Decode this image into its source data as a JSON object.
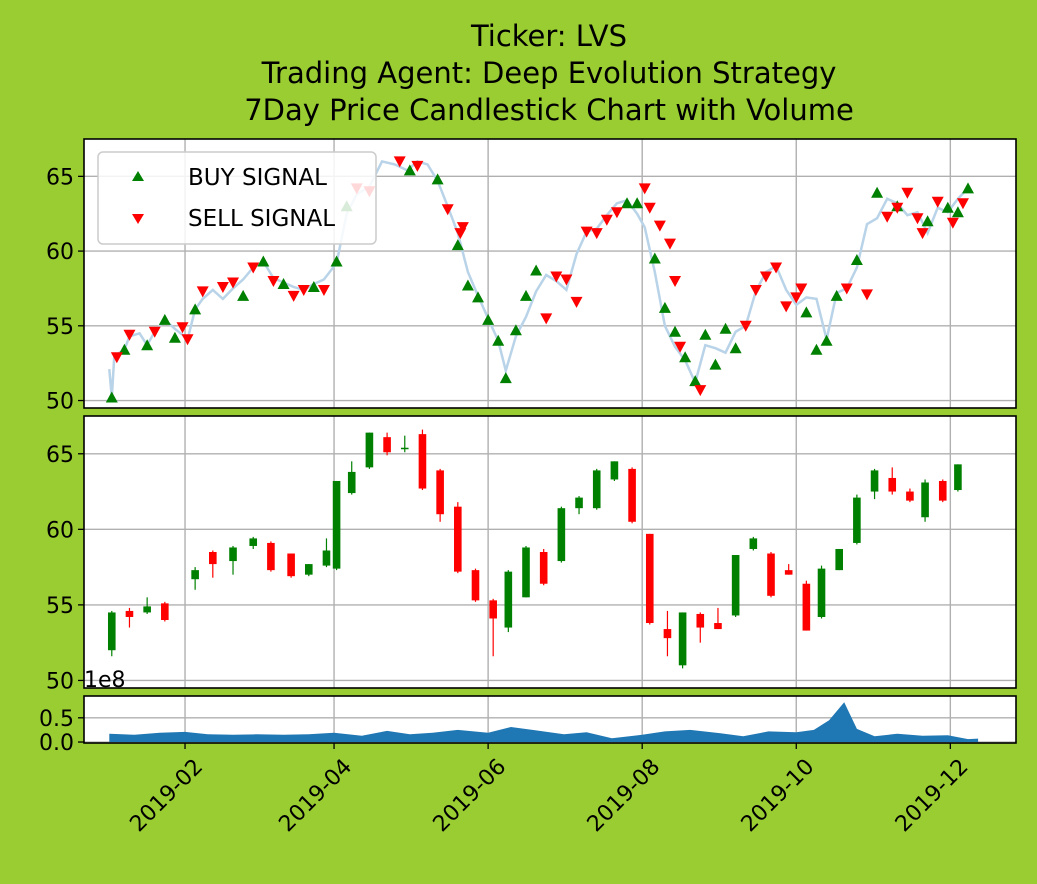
{
  "chart_data": {
    "type": "candlestick",
    "title": "Ticker: LVS",
    "subtitle_1": "Trading Agent: Deep Evolution Strategy",
    "subtitle_2": "7Day Price Candlestick Chart with Volume",
    "x_tick_labels": [
      "2019-02",
      "2019-04",
      "2019-06",
      "2019-08",
      "2019-10",
      "2019-12"
    ],
    "x_range": [
      "2018-12-23",
      "2019-12-27"
    ],
    "price_axis": {
      "ylim": [
        49.5,
        67.5
      ],
      "ticks": [
        50,
        55,
        60,
        65
      ]
    },
    "volume_axis": {
      "ylim": [
        -0.02,
        0.95
      ],
      "ticks": [
        "0.0",
        "0.5"
      ],
      "offset_label": "1e8"
    },
    "grid": true,
    "legend": {
      "placement": "top-left",
      "entries": [
        "BUY SIGNAL",
        "SELL SIGNAL"
      ]
    },
    "colors": {
      "background": "#9acd32",
      "price_line": "#b9d3e8",
      "buy": "#008000",
      "sell": "#ff0000",
      "volume": "#1f77b4",
      "grid": "#b0b0b0"
    },
    "price_series": [
      [
        "2019-01-02",
        52.1
      ],
      [
        "2019-01-03",
        50.2
      ],
      [
        "2019-01-04",
        53.0
      ],
      [
        "2019-01-08",
        53.4
      ],
      [
        "2019-01-10",
        54.3
      ],
      [
        "2019-01-14",
        54.5
      ],
      [
        "2019-01-17",
        53.7
      ],
      [
        "2019-01-20",
        54.6
      ],
      [
        "2019-01-24",
        55.4
      ],
      [
        "2019-01-28",
        54.8
      ],
      [
        "2019-01-31",
        54.4
      ],
      [
        "2019-02-02",
        54.1
      ],
      [
        "2019-02-05",
        56.1
      ],
      [
        "2019-02-08",
        56.8
      ],
      [
        "2019-02-12",
        57.4
      ],
      [
        "2019-02-16",
        56.8
      ],
      [
        "2019-02-20",
        57.5
      ],
      [
        "2019-02-24",
        58.1
      ],
      [
        "2019-02-28",
        58.9
      ],
      [
        "2019-03-04",
        59.3
      ],
      [
        "2019-03-08",
        58.2
      ],
      [
        "2019-03-12",
        57.9
      ],
      [
        "2019-03-16",
        57.6
      ],
      [
        "2019-03-20",
        57.4
      ],
      [
        "2019-03-24",
        57.8
      ],
      [
        "2019-03-28",
        58.1
      ],
      [
        "2019-04-02",
        59.2
      ],
      [
        "2019-04-06",
        62.5
      ],
      [
        "2019-04-10",
        63.8
      ],
      [
        "2019-04-15",
        64.3
      ],
      [
        "2019-04-20",
        66.0
      ],
      [
        "2019-04-25",
        65.8
      ],
      [
        "2019-04-30",
        65.4
      ],
      [
        "2019-05-04",
        66.0
      ],
      [
        "2019-05-08",
        65.8
      ],
      [
        "2019-05-12",
        64.7
      ],
      [
        "2019-05-16",
        63.0
      ],
      [
        "2019-05-20",
        61.2
      ],
      [
        "2019-05-24",
        58.6
      ],
      [
        "2019-05-28",
        57.0
      ],
      [
        "2019-06-01",
        55.5
      ],
      [
        "2019-06-05",
        54.0
      ],
      [
        "2019-06-08",
        52.0
      ],
      [
        "2019-06-12",
        54.3
      ],
      [
        "2019-06-16",
        55.6
      ],
      [
        "2019-06-20",
        57.3
      ],
      [
        "2019-06-24",
        58.4
      ],
      [
        "2019-06-28",
        58.0
      ],
      [
        "2019-07-02",
        57.4
      ],
      [
        "2019-07-06",
        59.8
      ],
      [
        "2019-07-10",
        61.3
      ],
      [
        "2019-07-14",
        61.5
      ],
      [
        "2019-07-18",
        62.4
      ],
      [
        "2019-07-22",
        63.2
      ],
      [
        "2019-07-26",
        63.4
      ],
      [
        "2019-07-30",
        62.5
      ],
      [
        "2019-08-02",
        61.6
      ],
      [
        "2019-08-06",
        58.6
      ],
      [
        "2019-08-10",
        55.0
      ],
      [
        "2019-08-14",
        53.6
      ],
      [
        "2019-08-18",
        52.7
      ],
      [
        "2019-08-22",
        51.2
      ],
      [
        "2019-08-26",
        53.7
      ],
      [
        "2019-08-30",
        53.5
      ],
      [
        "2019-09-03",
        53.2
      ],
      [
        "2019-09-07",
        54.6
      ],
      [
        "2019-09-11",
        55.0
      ],
      [
        "2019-09-15",
        57.3
      ],
      [
        "2019-09-19",
        58.6
      ],
      [
        "2019-09-23",
        59.0
      ],
      [
        "2019-09-27",
        57.4
      ],
      [
        "2019-10-01",
        56.4
      ],
      [
        "2019-10-05",
        56.9
      ],
      [
        "2019-10-09",
        56.8
      ],
      [
        "2019-10-13",
        54.1
      ],
      [
        "2019-10-17",
        57.2
      ],
      [
        "2019-10-21",
        57.5
      ],
      [
        "2019-10-25",
        58.9
      ],
      [
        "2019-10-29",
        61.8
      ],
      [
        "2019-11-02",
        62.2
      ],
      [
        "2019-11-06",
        63.5
      ],
      [
        "2019-11-10",
        63.2
      ],
      [
        "2019-11-14",
        62.4
      ],
      [
        "2019-11-18",
        62.6
      ],
      [
        "2019-11-22",
        61.2
      ],
      [
        "2019-11-26",
        62.9
      ],
      [
        "2019-11-30",
        62.6
      ],
      [
        "2019-12-04",
        63.5
      ],
      [
        "2019-12-08",
        64.2
      ]
    ],
    "buy_signals": [
      [
        "2019-01-03",
        50.2
      ],
      [
        "2019-01-08",
        53.4
      ],
      [
        "2019-01-17",
        53.7
      ],
      [
        "2019-01-24",
        55.4
      ],
      [
        "2019-01-28",
        54.2
      ],
      [
        "2019-02-05",
        56.1
      ],
      [
        "2019-02-24",
        57.0
      ],
      [
        "2019-03-04",
        59.3
      ],
      [
        "2019-03-12",
        57.8
      ],
      [
        "2019-03-24",
        57.6
      ],
      [
        "2019-04-02",
        59.3
      ],
      [
        "2019-04-06",
        63.0
      ],
      [
        "2019-05-01",
        65.4
      ],
      [
        "2019-05-12",
        64.8
      ],
      [
        "2019-05-20",
        60.4
      ],
      [
        "2019-05-24",
        57.7
      ],
      [
        "2019-05-28",
        56.9
      ],
      [
        "2019-06-01",
        55.4
      ],
      [
        "2019-06-05",
        54.0
      ],
      [
        "2019-06-08",
        51.5
      ],
      [
        "2019-06-12",
        54.7
      ],
      [
        "2019-06-16",
        57.0
      ],
      [
        "2019-06-20",
        58.7
      ],
      [
        "2019-07-26",
        63.2
      ],
      [
        "2019-07-30",
        63.2
      ],
      [
        "2019-08-06",
        59.5
      ],
      [
        "2019-08-10",
        56.2
      ],
      [
        "2019-08-14",
        54.6
      ],
      [
        "2019-08-18",
        52.9
      ],
      [
        "2019-08-22",
        51.3
      ],
      [
        "2019-08-26",
        54.4
      ],
      [
        "2019-08-30",
        52.4
      ],
      [
        "2019-09-03",
        54.8
      ],
      [
        "2019-09-07",
        53.5
      ],
      [
        "2019-10-05",
        55.9
      ],
      [
        "2019-10-09",
        53.4
      ],
      [
        "2019-10-13",
        54.0
      ],
      [
        "2019-10-17",
        57.0
      ],
      [
        "2019-10-25",
        59.4
      ],
      [
        "2019-11-02",
        63.9
      ],
      [
        "2019-11-10",
        63.0
      ],
      [
        "2019-11-22",
        62.0
      ],
      [
        "2019-11-30",
        62.9
      ],
      [
        "2019-12-04",
        62.6
      ],
      [
        "2019-12-08",
        64.2
      ]
    ],
    "sell_signals": [
      [
        "2019-01-05",
        52.9
      ],
      [
        "2019-01-10",
        54.4
      ],
      [
        "2019-01-20",
        54.6
      ],
      [
        "2019-01-31",
        54.9
      ],
      [
        "2019-02-02",
        54.1
      ],
      [
        "2019-02-08",
        57.3
      ],
      [
        "2019-02-16",
        57.6
      ],
      [
        "2019-02-20",
        57.9
      ],
      [
        "2019-02-28",
        58.9
      ],
      [
        "2019-03-08",
        58.0
      ],
      [
        "2019-03-16",
        57.0
      ],
      [
        "2019-03-20",
        57.4
      ],
      [
        "2019-03-28",
        57.4
      ],
      [
        "2019-04-10",
        64.2
      ],
      [
        "2019-04-15",
        64.0
      ],
      [
        "2019-04-27",
        66.0
      ],
      [
        "2019-05-04",
        65.7
      ],
      [
        "2019-05-16",
        62.8
      ],
      [
        "2019-05-21",
        61.2
      ],
      [
        "2019-05-22",
        61.6
      ],
      [
        "2019-06-24",
        55.5
      ],
      [
        "2019-06-28",
        58.3
      ],
      [
        "2019-07-02",
        58.1
      ],
      [
        "2019-07-06",
        56.6
      ],
      [
        "2019-07-10",
        61.3
      ],
      [
        "2019-07-14",
        61.2
      ],
      [
        "2019-07-18",
        62.1
      ],
      [
        "2019-07-22",
        62.6
      ],
      [
        "2019-08-02",
        64.2
      ],
      [
        "2019-08-04",
        62.9
      ],
      [
        "2019-08-08",
        61.7
      ],
      [
        "2019-08-12",
        60.5
      ],
      [
        "2019-08-14",
        58.0
      ],
      [
        "2019-08-16",
        53.6
      ],
      [
        "2019-08-24",
        50.7
      ],
      [
        "2019-09-11",
        55.0
      ],
      [
        "2019-09-15",
        57.4
      ],
      [
        "2019-09-19",
        58.3
      ],
      [
        "2019-09-23",
        58.9
      ],
      [
        "2019-09-27",
        56.3
      ],
      [
        "2019-10-01",
        56.9
      ],
      [
        "2019-10-03",
        57.5
      ],
      [
        "2019-10-21",
        57.5
      ],
      [
        "2019-10-29",
        57.1
      ],
      [
        "2019-11-06",
        62.3
      ],
      [
        "2019-11-10",
        62.9
      ],
      [
        "2019-11-14",
        63.9
      ],
      [
        "2019-11-18",
        62.2
      ],
      [
        "2019-11-20",
        61.2
      ],
      [
        "2019-11-26",
        63.3
      ],
      [
        "2019-12-02",
        61.9
      ],
      [
        "2019-12-06",
        63.2
      ]
    ],
    "candles": [
      [
        "2019-01-03",
        52.0,
        54.5,
        51.6,
        54.6
      ],
      [
        "2019-01-10",
        54.6,
        54.2,
        53.5,
        54.8
      ],
      [
        "2019-01-17",
        54.5,
        54.9,
        54.4,
        55.5
      ],
      [
        "2019-01-24",
        55.1,
        54.0,
        53.9,
        55.2
      ],
      [
        "2019-02-05",
        56.7,
        57.3,
        56.0,
        57.5
      ],
      [
        "2019-02-12",
        58.5,
        57.7,
        56.8,
        58.6
      ],
      [
        "2019-02-20",
        57.9,
        58.8,
        57.0,
        58.9
      ],
      [
        "2019-02-28",
        58.9,
        59.4,
        58.7,
        59.5
      ],
      [
        "2019-03-07",
        59.1,
        57.3,
        57.2,
        59.2
      ],
      [
        "2019-03-15",
        58.4,
        56.9,
        56.8,
        58.4
      ],
      [
        "2019-03-22",
        57.0,
        57.7,
        56.9,
        57.7
      ],
      [
        "2019-03-29",
        57.6,
        58.6,
        57.5,
        59.4
      ],
      [
        "2019-04-02",
        57.4,
        63.2,
        57.3,
        63.2
      ],
      [
        "2019-04-08",
        62.4,
        63.8,
        62.3,
        64.5
      ],
      [
        "2019-04-15",
        64.1,
        66.4,
        64.0,
        66.4
      ],
      [
        "2019-04-22",
        66.1,
        65.1,
        64.9,
        66.4
      ],
      [
        "2019-04-29",
        65.3,
        65.4,
        65.1,
        66.2
      ],
      [
        "2019-05-06",
        66.3,
        62.7,
        62.6,
        66.6
      ],
      [
        "2019-05-13",
        63.9,
        61.0,
        60.5,
        64.0
      ],
      [
        "2019-05-20",
        61.5,
        57.2,
        57.1,
        61.8
      ],
      [
        "2019-05-27",
        57.3,
        55.3,
        55.2,
        57.4
      ],
      [
        "2019-06-03",
        55.3,
        54.1,
        51.6,
        55.4
      ],
      [
        "2019-06-09",
        53.5,
        57.2,
        53.2,
        57.3
      ],
      [
        "2019-06-16",
        55.5,
        58.8,
        55.5,
        58.9
      ],
      [
        "2019-06-23",
        58.5,
        56.4,
        56.3,
        58.7
      ],
      [
        "2019-06-30",
        57.9,
        61.4,
        57.8,
        61.5
      ],
      [
        "2019-07-07",
        61.4,
        62.1,
        61.0,
        62.2
      ],
      [
        "2019-07-14",
        61.4,
        63.9,
        61.3,
        64.0
      ],
      [
        "2019-07-21",
        63.3,
        64.5,
        63.2,
        64.5
      ],
      [
        "2019-07-28",
        64.0,
        60.5,
        60.4,
        64.1
      ],
      [
        "2019-08-04",
        59.7,
        53.8,
        53.7,
        59.7
      ],
      [
        "2019-08-11",
        53.4,
        52.8,
        51.6,
        54.6
      ],
      [
        "2019-08-17",
        51.0,
        54.5,
        50.8,
        54.5
      ],
      [
        "2019-08-24",
        54.4,
        53.5,
        52.5,
        54.5
      ],
      [
        "2019-08-31",
        53.8,
        53.4,
        53.4,
        54.8
      ],
      [
        "2019-09-07",
        54.3,
        58.3,
        54.2,
        58.3
      ],
      [
        "2019-09-14",
        58.7,
        59.4,
        58.6,
        59.5
      ],
      [
        "2019-09-21",
        58.4,
        55.6,
        55.5,
        58.5
      ],
      [
        "2019-09-28",
        57.3,
        57.0,
        57.0,
        57.7
      ],
      [
        "2019-10-05",
        56.4,
        53.3,
        53.3,
        56.6
      ],
      [
        "2019-10-11",
        54.2,
        57.4,
        54.1,
        57.6
      ],
      [
        "2019-10-18",
        57.3,
        58.7,
        57.3,
        58.7
      ],
      [
        "2019-10-25",
        59.1,
        62.1,
        59.0,
        62.3
      ],
      [
        "2019-11-01",
        62.5,
        63.9,
        62.0,
        64.0
      ],
      [
        "2019-11-08",
        63.4,
        62.5,
        62.3,
        64.1
      ],
      [
        "2019-11-15",
        62.5,
        61.9,
        61.8,
        62.7
      ],
      [
        "2019-11-21",
        60.8,
        63.1,
        60.5,
        63.3
      ],
      [
        "2019-11-28",
        63.2,
        61.9,
        61.8,
        63.3
      ],
      [
        "2019-12-04",
        62.6,
        64.3,
        62.5,
        64.3
      ]
    ],
    "volume_series": [
      [
        "2019-01-02",
        0.17
      ],
      [
        "2019-01-12",
        0.15
      ],
      [
        "2019-01-22",
        0.19
      ],
      [
        "2019-02-01",
        0.21
      ],
      [
        "2019-02-10",
        0.16
      ],
      [
        "2019-02-20",
        0.15
      ],
      [
        "2019-03-01",
        0.16
      ],
      [
        "2019-03-12",
        0.15
      ],
      [
        "2019-03-22",
        0.16
      ],
      [
        "2019-04-01",
        0.19
      ],
      [
        "2019-04-12",
        0.13
      ],
      [
        "2019-04-22",
        0.23
      ],
      [
        "2019-05-01",
        0.16
      ],
      [
        "2019-05-10",
        0.19
      ],
      [
        "2019-05-20",
        0.25
      ],
      [
        "2019-06-01",
        0.19
      ],
      [
        "2019-06-10",
        0.31
      ],
      [
        "2019-06-20",
        0.24
      ],
      [
        "2019-07-01",
        0.16
      ],
      [
        "2019-07-10",
        0.2
      ],
      [
        "2019-07-20",
        0.08
      ],
      [
        "2019-08-01",
        0.15
      ],
      [
        "2019-08-10",
        0.22
      ],
      [
        "2019-08-20",
        0.25
      ],
      [
        "2019-09-01",
        0.18
      ],
      [
        "2019-09-10",
        0.12
      ],
      [
        "2019-09-20",
        0.22
      ],
      [
        "2019-10-01",
        0.2
      ],
      [
        "2019-10-08",
        0.25
      ],
      [
        "2019-10-14",
        0.45
      ],
      [
        "2019-10-20",
        0.82
      ],
      [
        "2019-10-25",
        0.27
      ],
      [
        "2019-11-01",
        0.12
      ],
      [
        "2019-11-10",
        0.17
      ],
      [
        "2019-11-20",
        0.13
      ],
      [
        "2019-11-30",
        0.14
      ],
      [
        "2019-12-08",
        0.06
      ],
      [
        "2019-12-12",
        0.07
      ]
    ]
  }
}
